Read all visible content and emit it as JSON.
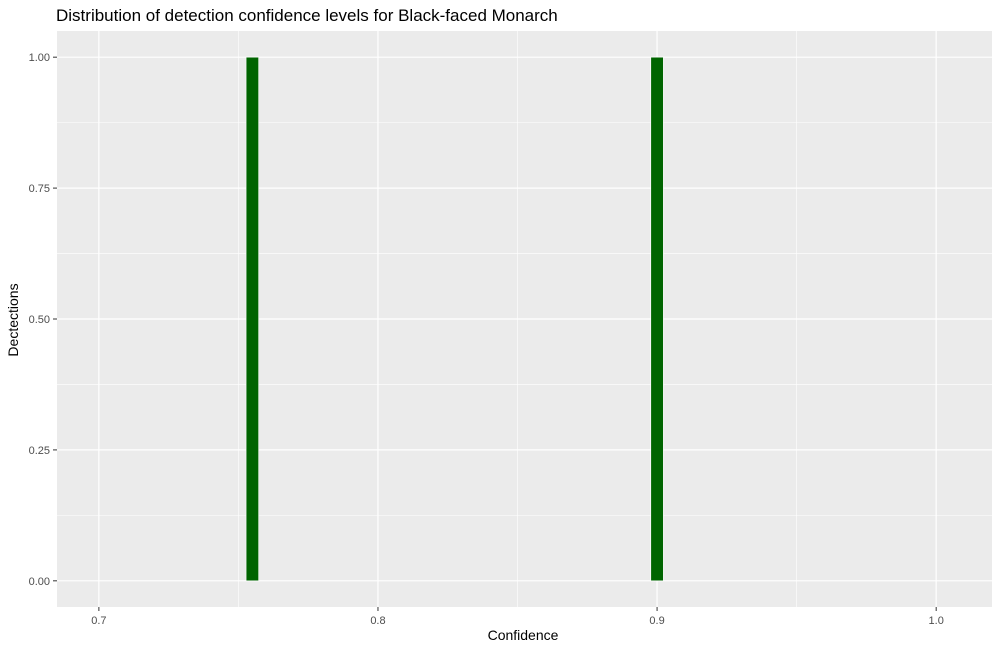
{
  "chart_data": {
    "type": "bar",
    "title": "Distribution of detection confidence levels for Black-faced Monarch",
    "xlabel": "Confidence",
    "ylabel": "Dectections",
    "xlim": [
      0.685,
      1.02
    ],
    "ylim": [
      -0.05,
      1.05
    ],
    "x_ticks": [
      0.7,
      0.8,
      0.9,
      1.0
    ],
    "x_tick_labels": [
      "0.7",
      "0.8",
      "0.9",
      "1.0"
    ],
    "y_ticks": [
      0.0,
      0.25,
      0.5,
      0.75,
      1.0
    ],
    "y_tick_labels": [
      "0.00",
      "0.25",
      "0.50",
      "0.75",
      "1.00"
    ],
    "bin_width": 0.0045,
    "bars": [
      {
        "x": 0.755,
        "count": 1
      },
      {
        "x": 0.9,
        "count": 1
      }
    ],
    "grid": true,
    "legend": "none",
    "colors": {
      "panel_background": "#ebebeb",
      "grid_line": "#ffffff",
      "bar_fill": "#006400"
    }
  }
}
